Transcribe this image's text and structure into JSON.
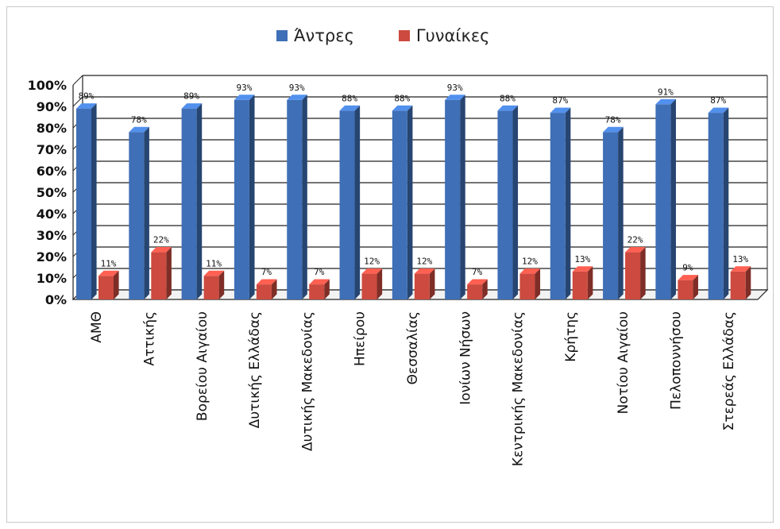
{
  "legend": {
    "men_label": "Άντρες",
    "women_label": "Γυναίκες"
  },
  "colors": {
    "men": "#3f6fb6",
    "women": "#cc4a3f"
  },
  "chart_data": {
    "type": "bar",
    "title": "",
    "xlabel": "",
    "ylabel": "",
    "ylim": [
      0,
      100
    ],
    "yticks": [
      "0%",
      "10%",
      "20%",
      "30%",
      "40%",
      "50%",
      "60%",
      "70%",
      "80%",
      "90%",
      "100%"
    ],
    "grid": true,
    "legend_position": "top-center",
    "categories": [
      "ΑΜΘ",
      "Αττικής",
      "Βορείου Αιγαίου",
      "Δυτικής Ελλάδας",
      "Δυτικής Μακεδονίας",
      "Ηπείρου",
      "Θεσσαλίας",
      "Ιονίων Νήσων",
      "Κεντρικής Μακεδονίας",
      "Κρήτης",
      "Νοτίου Αιγαίου",
      "Πελοποννήσου",
      "Στερεάς Ελλάδας"
    ],
    "series": [
      {
        "name": "Άντρες",
        "values": [
          89,
          78,
          89,
          93,
          93,
          88,
          88,
          93,
          88,
          87,
          78,
          91,
          87
        ],
        "labels": [
          "89%",
          "78%",
          "89%",
          "93%",
          "93%",
          "88%",
          "88%",
          "93%",
          "88%",
          "87%",
          "78%",
          "91%",
          "87%"
        ]
      },
      {
        "name": "Γυναίκες",
        "values": [
          11,
          22,
          11,
          7,
          7,
          12,
          12,
          7,
          12,
          13,
          22,
          9,
          13
        ],
        "labels": [
          "11%",
          "22%",
          "11%",
          "7%",
          "7%",
          "12%",
          "12%",
          "7%",
          "12%",
          "13%",
          "22%",
          "9%",
          "13%"
        ]
      }
    ]
  }
}
